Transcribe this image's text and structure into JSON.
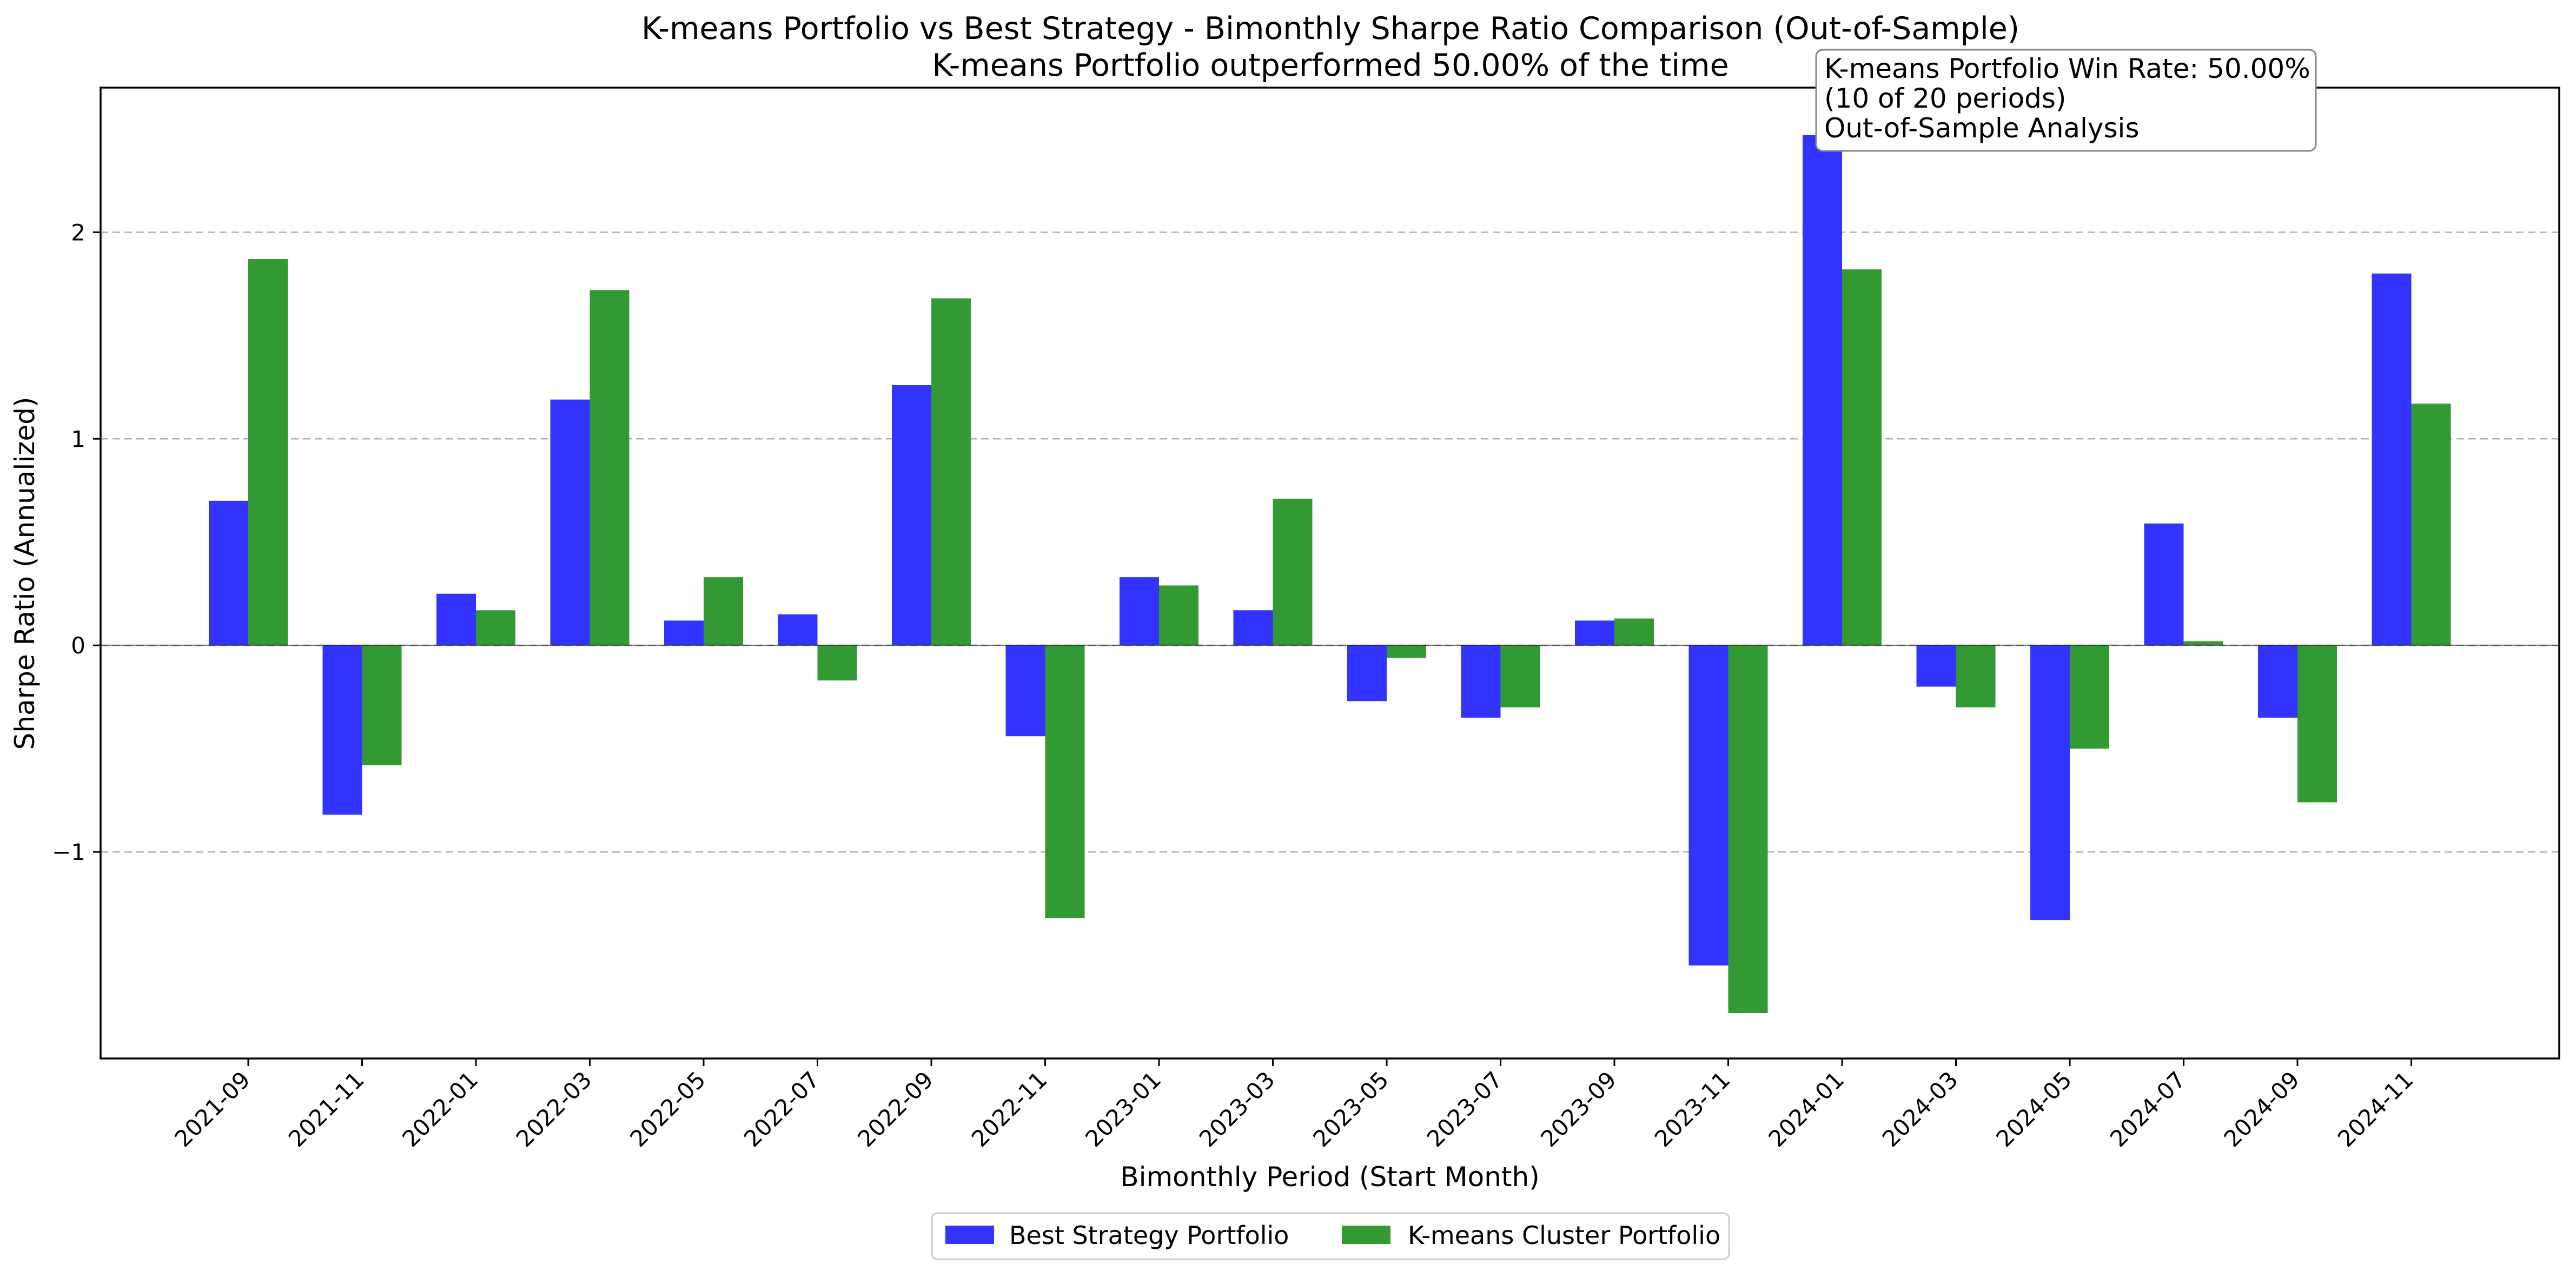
{
  "chart_data": {
    "type": "bar",
    "title": "K-means Portfolio vs Best Strategy - Bimonthly Sharpe Ratio Comparison (Out-of-Sample)",
    "subtitle": "K-means Portfolio outperformed 50.00% of the time",
    "xlabel": "Bimonthly Period (Start Month)",
    "ylabel": "Sharpe Ratio (Annualized)",
    "ylim": [
      -2.0,
      2.7
    ],
    "yticks": [
      2,
      1,
      0,
      -1
    ],
    "ytick_labels": [
      "2",
      "1",
      "0",
      "−1"
    ],
    "grid": "y-axis dashed",
    "legend_position": "bottom-center",
    "categories": [
      "2021-09",
      "2021-11",
      "2022-01",
      "2022-03",
      "2022-05",
      "2022-07",
      "2022-09",
      "2022-11",
      "2023-01",
      "2023-03",
      "2023-05",
      "2023-07",
      "2023-09",
      "2023-11",
      "2024-01",
      "2024-03",
      "2024-05",
      "2024-07",
      "2024-09",
      "2024-11"
    ],
    "series": [
      {
        "name": "Best Strategy Portfolio",
        "color": "#3333ff",
        "values": [
          0.7,
          -0.82,
          0.25,
          1.19,
          0.12,
          0.15,
          1.26,
          -0.44,
          0.33,
          0.17,
          -0.27,
          -0.35,
          0.12,
          -1.55,
          2.47,
          -0.2,
          -1.33,
          0.59,
          -0.35,
          1.8
        ]
      },
      {
        "name": "K-means Cluster Portfolio",
        "color": "#339933",
        "values": [
          1.87,
          -0.58,
          0.17,
          1.72,
          0.33,
          -0.17,
          1.68,
          -1.32,
          0.29,
          0.71,
          -0.06,
          -0.3,
          0.13,
          -1.78,
          1.82,
          -0.3,
          -0.5,
          0.02,
          -0.76,
          1.17
        ]
      }
    ],
    "annotation": {
      "lines": [
        "K-means Portfolio Win Rate: 50.00%",
        "(10 of 20 periods)",
        "Out-of-Sample Analysis"
      ],
      "position": "top-center"
    }
  }
}
